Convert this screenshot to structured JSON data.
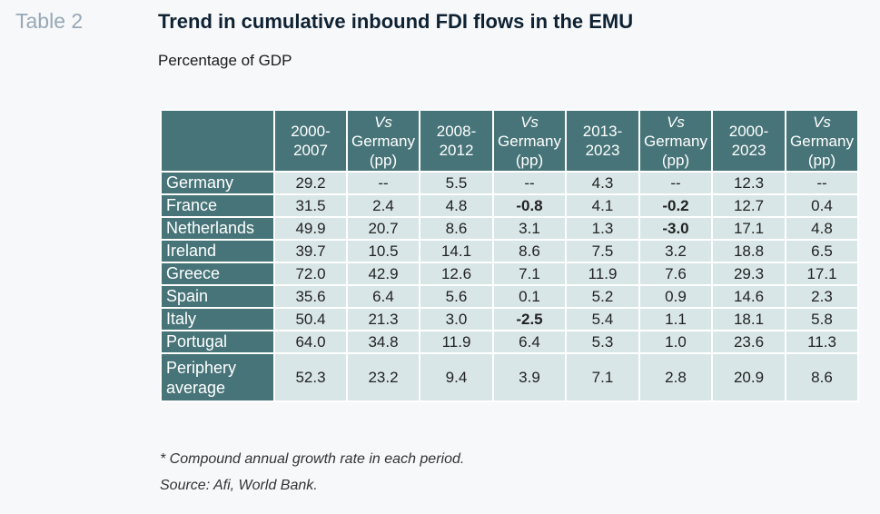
{
  "label": "Table 2",
  "title": "Trend in cumulative inbound FDI flows in the EMU",
  "subtitle": "Percentage of GDP",
  "columns": [
    {
      "l1": "2000-",
      "l2": "2007",
      "l3": "",
      "italic": false
    },
    {
      "l1": "Vs",
      "l2": "Germany",
      "l3": "(pp)",
      "italic": true
    },
    {
      "l1": "2008-",
      "l2": "2012",
      "l3": "",
      "italic": false
    },
    {
      "l1": "Vs",
      "l2": "Germany",
      "l3": "(pp)",
      "italic": true
    },
    {
      "l1": "2013-",
      "l2": "2023",
      "l3": "",
      "italic": false
    },
    {
      "l1": "Vs",
      "l2": "Germany",
      "l3": "(pp)",
      "italic": true
    },
    {
      "l1": "2000-",
      "l2": "2023",
      "l3": "",
      "italic": false
    },
    {
      "l1": "Vs",
      "l2": "Germany",
      "l3": "(pp)",
      "italic": true
    }
  ],
  "rows": [
    {
      "country_l1": "Germany",
      "country_l2": "",
      "values": [
        "29.2",
        "--",
        "5.5",
        "--",
        "4.3",
        "--",
        "12.3",
        "--"
      ],
      "bold": [
        false,
        false,
        false,
        false,
        false,
        false,
        false,
        false
      ]
    },
    {
      "country_l1": "France",
      "country_l2": "",
      "values": [
        "31.5",
        "2.4",
        "4.8",
        "-0.8",
        "4.1",
        "-0.2",
        "12.7",
        "0.4"
      ],
      "bold": [
        false,
        false,
        false,
        true,
        false,
        true,
        false,
        false
      ]
    },
    {
      "country_l1": "Netherlands",
      "country_l2": "",
      "values": [
        "49.9",
        "20.7",
        "8.6",
        "3.1",
        "1.3",
        "-3.0",
        "17.1",
        "4.8"
      ],
      "bold": [
        false,
        false,
        false,
        false,
        false,
        true,
        false,
        false
      ]
    },
    {
      "country_l1": "Ireland",
      "country_l2": "",
      "values": [
        "39.7",
        "10.5",
        "14.1",
        "8.6",
        "7.5",
        "3.2",
        "18.8",
        "6.5"
      ],
      "bold": [
        false,
        false,
        false,
        false,
        false,
        false,
        false,
        false
      ]
    },
    {
      "country_l1": "Greece",
      "country_l2": "",
      "values": [
        "72.0",
        "42.9",
        "12.6",
        "7.1",
        "11.9",
        "7.6",
        "29.3",
        "17.1"
      ],
      "bold": [
        false,
        false,
        false,
        false,
        false,
        false,
        false,
        false
      ]
    },
    {
      "country_l1": "Spain",
      "country_l2": "",
      "values": [
        "35.6",
        "6.4",
        "5.6",
        "0.1",
        "5.2",
        "0.9",
        "14.6",
        "2.3"
      ],
      "bold": [
        false,
        false,
        false,
        false,
        false,
        false,
        false,
        false
      ]
    },
    {
      "country_l1": "Italy",
      "country_l2": "",
      "values": [
        "50.4",
        "21.3",
        "3.0",
        "-2.5",
        "5.4",
        "1.1",
        "18.1",
        "5.8"
      ],
      "bold": [
        false,
        false,
        false,
        true,
        false,
        false,
        false,
        false
      ]
    },
    {
      "country_l1": "Portugal",
      "country_l2": "",
      "values": [
        "64.0",
        "34.8",
        "11.9",
        "6.4",
        "5.3",
        "1.0",
        "23.6",
        "11.3"
      ],
      "bold": [
        false,
        false,
        false,
        false,
        false,
        false,
        false,
        false
      ]
    },
    {
      "country_l1": "Periphery",
      "country_l2": "average",
      "values": [
        "52.3",
        "23.2",
        "9.4",
        "3.9",
        "7.1",
        "2.8",
        "20.9",
        "8.6"
      ],
      "bold": [
        false,
        false,
        false,
        false,
        false,
        false,
        false,
        false
      ]
    }
  ],
  "footnote": "* Compound annual growth rate in each period.",
  "source": "Source: Afi, World Bank."
}
